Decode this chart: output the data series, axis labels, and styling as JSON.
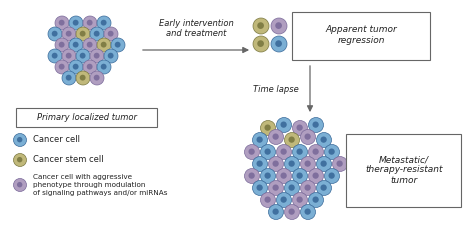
{
  "bg_color": "#ffffff",
  "arrow_color": "#666666",
  "box_color": "#666666",
  "cell_blue": "#7bafd4",
  "cell_blue_dark": "#3a6a9a",
  "cell_olive": "#c0b87a",
  "cell_olive_dark": "#7a7840",
  "cell_purple": "#b09ec0",
  "cell_purple_dark": "#7a6a9a",
  "text_color": "#222222",
  "primary_label": "Primary localized tumor",
  "regression_label": "Apparent tumor\nregression",
  "timelapse_label": "Time lapse",
  "metastatic_label": "Metastatic/\ntherapy-resistant\ntumor",
  "arrow_label": "Early intervention\nand treatment",
  "legend_1": "Cancer cell",
  "legend_2": "Cancer stem cell",
  "legend_3": "Cancer cell with aggressive\nphenotype through modulation\nof signaling pathways and/or miRNAs"
}
